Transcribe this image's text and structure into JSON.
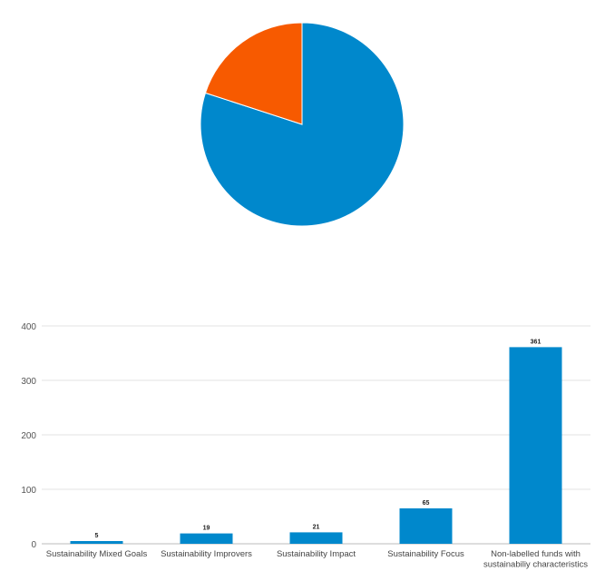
{
  "chart_data": [
    {
      "type": "pie",
      "values": [
        80,
        20
      ],
      "colors": [
        "#0088cc",
        "#f75a00"
      ],
      "start": "12 o'clock, clockwise",
      "legend": "none"
    },
    {
      "type": "bar",
      "categories": [
        "Sustainability Mixed Goals",
        "Sustainability Improvers",
        "Sustainability Impact",
        "Sustainability Focus",
        "Non-labelled funds with sustainabiliy characteristics"
      ],
      "values": [
        5,
        19,
        21,
        65,
        361
      ],
      "data_labels": [
        "5",
        "19",
        "21",
        "65",
        "361"
      ],
      "ylim": [
        0,
        400
      ],
      "yticks": [
        "0",
        "100",
        "200",
        "300",
        "400"
      ],
      "grid": true,
      "color": "#0088cc",
      "xlabel": "",
      "ylabel": ""
    }
  ]
}
